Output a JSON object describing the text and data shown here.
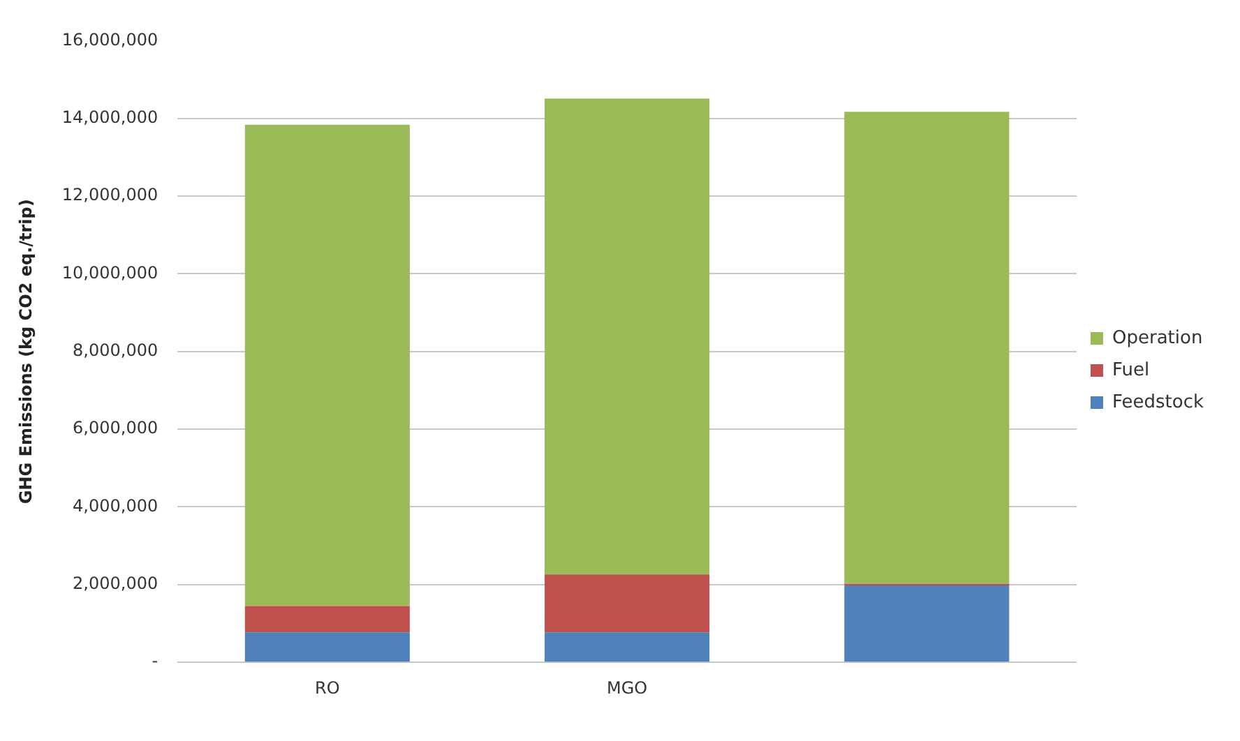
{
  "chart_data": {
    "type": "bar",
    "stacked": true,
    "ylabel": "GHG Emissions (kg CO2 eq./trip)",
    "categories": [
      "RO",
      "MGO",
      null
    ],
    "series": [
      {
        "name": "Feedstock",
        "color": "#4f81bd",
        "values": [
          770000,
          770000,
          1980000
        ]
      },
      {
        "name": "Fuel",
        "color": "#c0504d",
        "values": [
          680000,
          1490000,
          40000
        ]
      },
      {
        "name": "Operation",
        "color": "#9bbb59",
        "values": [
          12390000,
          12250000,
          12150000
        ]
      }
    ],
    "ylim": [
      0,
      16000000
    ],
    "yticks": [
      {
        "value": 0,
        "label": "-"
      },
      {
        "value": 2000000,
        "label": "2,000,000"
      },
      {
        "value": 4000000,
        "label": "4,000,000"
      },
      {
        "value": 6000000,
        "label": "6,000,000"
      },
      {
        "value": 8000000,
        "label": "8,000,000"
      },
      {
        "value": 10000000,
        "label": "10,000,000"
      },
      {
        "value": 12000000,
        "label": "12,000,000"
      },
      {
        "value": 14000000,
        "label": "14,000,000"
      },
      {
        "value": 16000000,
        "label": "16,000,000"
      }
    ],
    "grid": "y",
    "legend": "right"
  }
}
